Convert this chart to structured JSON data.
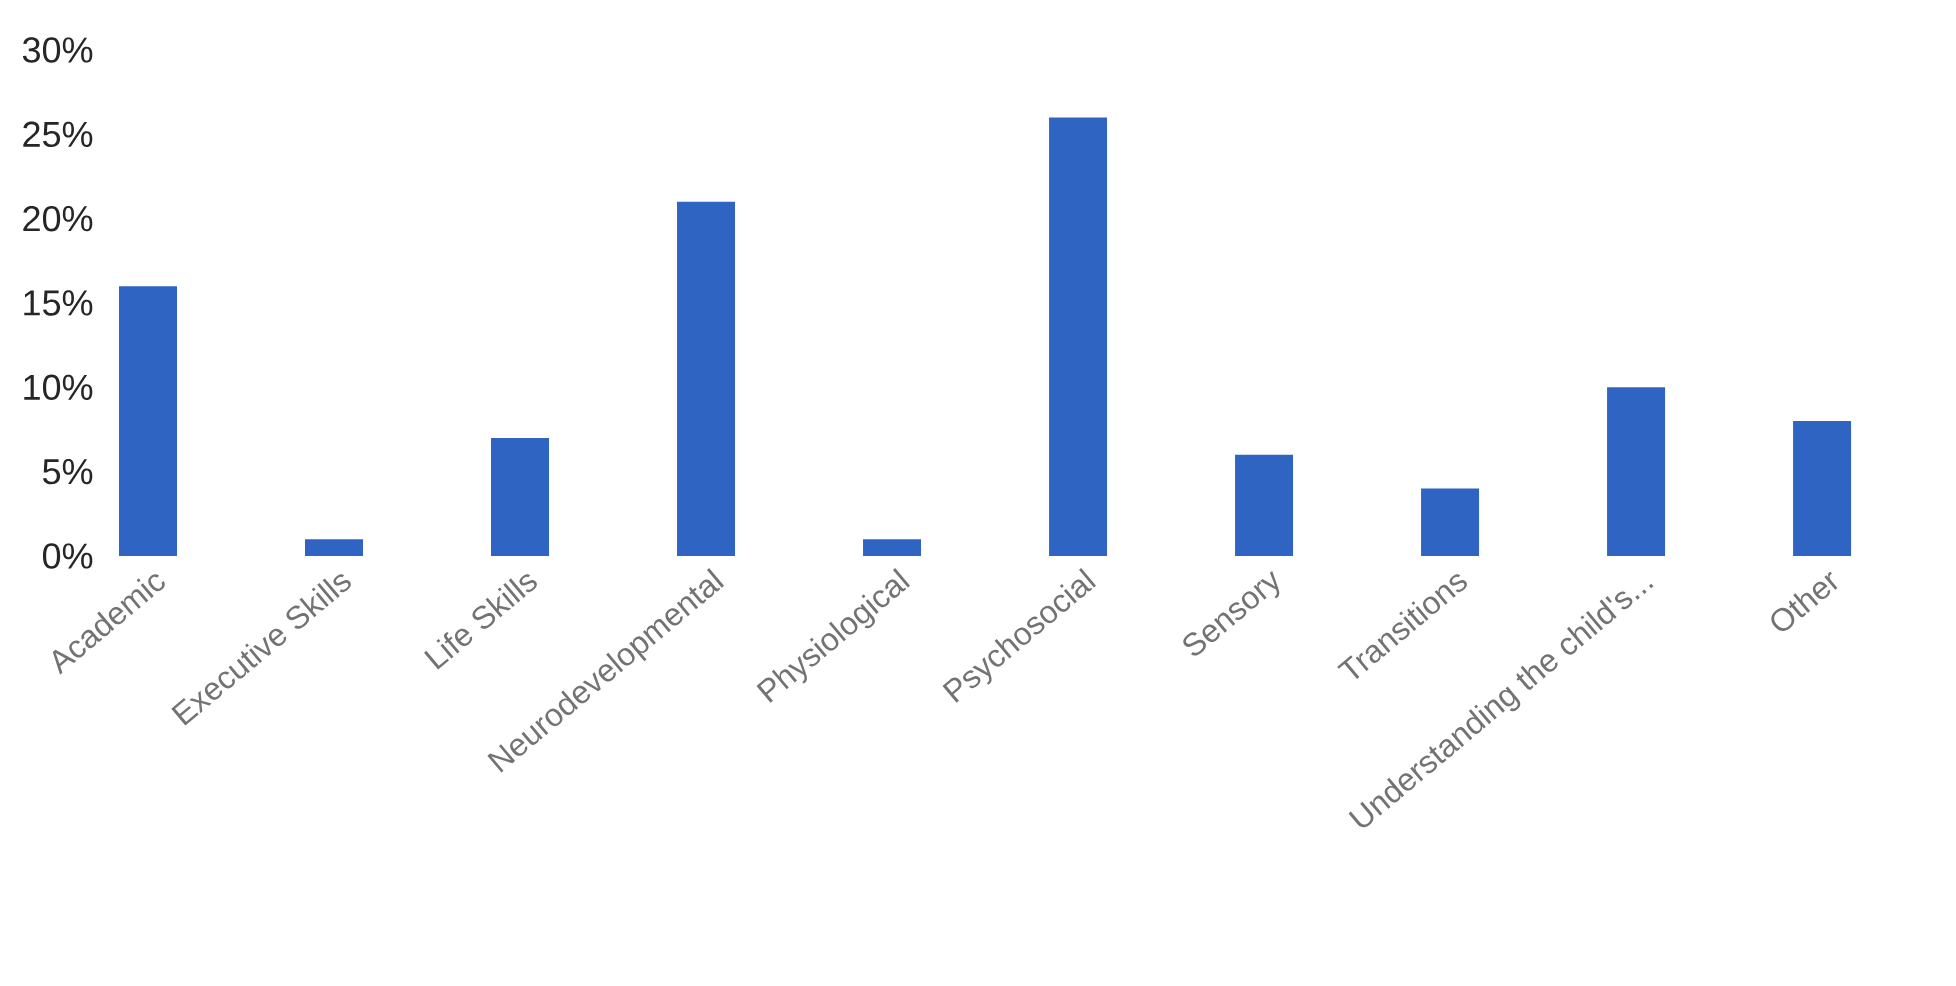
{
  "chart_data": {
    "type": "bar",
    "categories": [
      "Academic",
      "Executive Skills",
      "Life Skills",
      "Neurodevelopmental",
      "Physiological",
      "Psychosocial",
      "Sensory",
      "Transitions",
      "Understanding the child's...",
      "Other"
    ],
    "values": [
      16,
      1,
      7,
      21,
      1,
      26,
      6,
      4,
      10,
      8
    ],
    "color": "#2f64c2",
    "ylim": [
      0,
      30
    ],
    "yticks": [
      {
        "value": 0,
        "label": "0%"
      },
      {
        "value": 5,
        "label": "5%"
      },
      {
        "value": 10,
        "label": "10%"
      },
      {
        "value": 15,
        "label": "15%"
      },
      {
        "value": 20,
        "label": "20%"
      },
      {
        "value": 25,
        "label": "25%"
      },
      {
        "value": 30,
        "label": "30%"
      }
    ]
  }
}
